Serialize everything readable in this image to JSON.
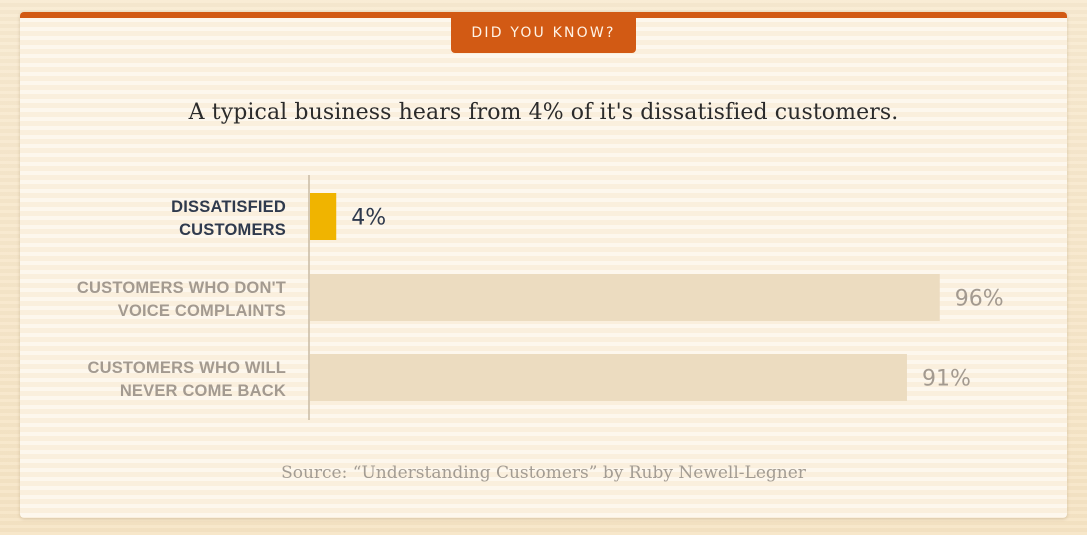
{
  "badge": "DID YOU KNOW?",
  "headline": "A typical business hears from 4% of it's dissatisfied customers.",
  "source": "Source: “Understanding Customers” by Ruby Newell-Legner",
  "colors": {
    "accent": "#d25a14",
    "highlight_bar": "#f0b400",
    "muted_bar": "#ecdcc0",
    "label_dark": "#2f3a4d",
    "label_muted": "#a39a90",
    "value_muted": "#a39a90"
  },
  "chart_data": {
    "type": "bar",
    "orientation": "horizontal",
    "title": "A typical business hears from 4% of it's dissatisfied customers.",
    "categories": [
      [
        "DISSATISFIED",
        "CUSTOMERS"
      ],
      [
        "CUSTOMERS WHO DON'T",
        "VOICE COMPLAINTS"
      ],
      [
        "CUSTOMERS WHO WILL",
        "NEVER COME BACK"
      ]
    ],
    "values": [
      4,
      96,
      91
    ],
    "value_labels": [
      "4%",
      "96%",
      "91%"
    ],
    "highlighted": [
      true,
      false,
      false
    ],
    "xlim": [
      0,
      100
    ],
    "grid": false,
    "legend": "none"
  }
}
